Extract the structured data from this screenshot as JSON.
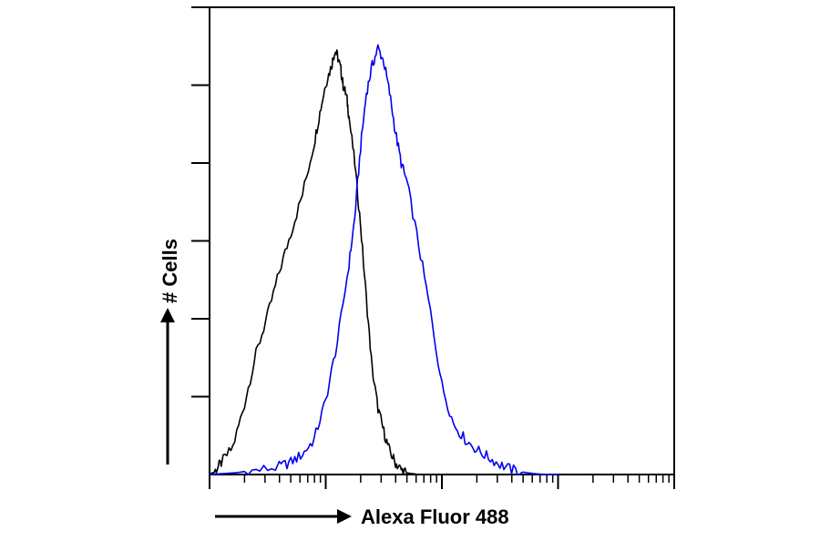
{
  "chart_data": {
    "type": "line",
    "title": "",
    "xlabel": "Alexa Fluor 488",
    "ylabel": "# Cells",
    "x_scale": "log",
    "xlim": [
      0,
      4
    ],
    "ylim": [
      0,
      6
    ],
    "grid": false,
    "legend": "none",
    "x_major_ticks": [
      1,
      2,
      3
    ],
    "y_ticks": [
      1,
      2,
      3,
      4,
      5,
      6
    ],
    "series": [
      {
        "color": "#000000",
        "x": [
          0.0,
          0.05,
          0.1,
          0.2,
          0.3,
          0.4,
          0.5,
          0.6,
          0.7,
          0.8,
          0.9,
          0.95,
          1.0,
          1.05,
          1.08,
          1.1,
          1.13,
          1.15,
          1.18,
          1.2,
          1.25,
          1.3,
          1.35,
          1.4,
          1.45,
          1.5,
          1.55,
          1.6,
          1.65,
          1.7,
          1.8,
          1.9,
          2.0
        ],
        "y": [
          0.0,
          0.05,
          0.15,
          0.35,
          0.9,
          1.55,
          2.05,
          2.6,
          3.1,
          3.6,
          4.25,
          4.65,
          5.02,
          5.25,
          5.45,
          5.38,
          5.2,
          5.0,
          4.85,
          4.6,
          4.0,
          3.2,
          2.25,
          1.35,
          0.85,
          0.55,
          0.3,
          0.15,
          0.06,
          0.02,
          0.0,
          0.0,
          0.0
        ]
      },
      {
        "color": "#0000ee",
        "x": [
          0.0,
          0.2,
          0.4,
          0.6,
          0.7,
          0.8,
          0.9,
          1.0,
          1.1,
          1.2,
          1.25,
          1.3,
          1.35,
          1.4,
          1.45,
          1.5,
          1.55,
          1.6,
          1.65,
          1.7,
          1.8,
          1.9,
          2.0,
          2.1,
          2.2,
          2.3,
          2.4,
          2.5,
          2.6,
          2.7,
          2.8,
          2.9,
          3.0
        ],
        "y": [
          0.0,
          0.02,
          0.05,
          0.1,
          0.16,
          0.26,
          0.45,
          0.95,
          1.7,
          2.7,
          3.3,
          4.2,
          4.9,
          5.25,
          5.48,
          5.3,
          4.9,
          4.4,
          4.0,
          3.75,
          2.95,
          2.1,
          1.15,
          0.65,
          0.45,
          0.32,
          0.22,
          0.13,
          0.06,
          0.03,
          0.01,
          0.0,
          0.0
        ]
      }
    ],
    "annotations": [
      "→ Alexa Fluor 488",
      "↑ # Cells"
    ]
  }
}
